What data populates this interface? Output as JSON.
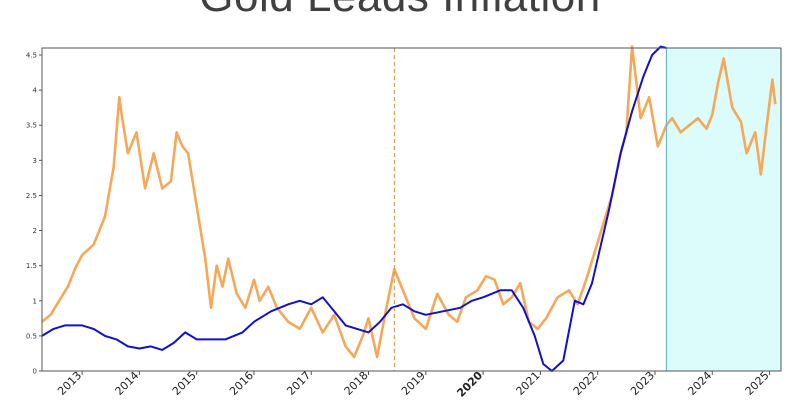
{
  "title": "Gold Leads Inflation",
  "colors": {
    "gold_series": "#f5a85a",
    "inflation_series": "#1111cc",
    "marker_line": "#e08a3a",
    "forecast_fill": "#dcfbfb",
    "forecast_border": "#6fb9c9",
    "highlight_tick": "#8b0000"
  },
  "chart_data": {
    "type": "line",
    "title": "Gold Leads Inflation",
    "xlabel": "",
    "ylabel": "",
    "xlim": [
      2012.3,
      2025.2
    ],
    "ylim": [
      0,
      4.6
    ],
    "grid": false,
    "legend": "none",
    "y_ticks": [
      "0",
      "0.5",
      "1",
      "1.5",
      "2",
      "2.5",
      "3",
      "3.5",
      "4",
      "4.5"
    ],
    "x_ticks": [
      {
        "label": "2013",
        "value": 2013,
        "highlight": false
      },
      {
        "label": "2014",
        "value": 2014,
        "highlight": false
      },
      {
        "label": "2015",
        "value": 2015,
        "highlight": false
      },
      {
        "label": "2016",
        "value": 2016,
        "highlight": false
      },
      {
        "label": "2017",
        "value": 2017,
        "highlight": false
      },
      {
        "label": "2018",
        "value": 2018,
        "highlight": false
      },
      {
        "label": "2019",
        "value": 2019,
        "highlight": false
      },
      {
        "label": "2020",
        "value": 2020,
        "highlight": true
      },
      {
        "label": "2021",
        "value": 2021,
        "highlight": false
      },
      {
        "label": "2022",
        "value": 2022,
        "highlight": false
      },
      {
        "label": "2023",
        "value": 2023,
        "highlight": false
      },
      {
        "label": "2024",
        "value": 2024,
        "highlight": false
      },
      {
        "label": "2025",
        "value": 2025,
        "highlight": false
      }
    ],
    "vertical_marker": 2018.45,
    "shaded_region": [
      2023.2,
      2025.2
    ],
    "series": [
      {
        "color": "gold",
        "x": [
          2012.3,
          2012.45,
          2012.6,
          2012.75,
          2012.9,
          2013.0,
          2013.2,
          2013.4,
          2013.55,
          2013.65,
          2013.7,
          2013.8,
          2013.95,
          2014.1,
          2014.25,
          2014.4,
          2014.55,
          2014.65,
          2014.75,
          2014.85,
          2014.95,
          2015.05,
          2015.15,
          2015.25,
          2015.35,
          2015.45,
          2015.55,
          2015.7,
          2015.85,
          2016.0,
          2016.1,
          2016.25,
          2016.4,
          2016.6,
          2016.8,
          2017.0,
          2017.2,
          2017.4,
          2017.6,
          2017.75,
          2017.9,
          2018.0,
          2018.15,
          2018.3,
          2018.45,
          2018.6,
          2018.8,
          2019.0,
          2019.2,
          2019.4,
          2019.55,
          2019.7,
          2019.9,
          2020.05,
          2020.2,
          2020.35,
          2020.5,
          2020.65,
          2020.8,
          2020.95,
          2021.1,
          2021.3,
          2021.5,
          2021.65,
          2021.8,
          2021.95,
          2022.1,
          2022.25,
          2022.4,
          2022.5,
          2022.6,
          2022.75,
          2022.9,
          2023.05,
          2023.2,
          2023.3,
          2023.45,
          2023.6,
          2023.75,
          2023.9,
          2024.0,
          2024.1,
          2024.2,
          2024.35,
          2024.5,
          2024.6,
          2024.75,
          2024.85,
          2024.95,
          2025.05,
          2025.1
        ],
        "y": [
          0.7,
          0.8,
          1.0,
          1.2,
          1.5,
          1.65,
          1.8,
          2.2,
          2.9,
          3.9,
          3.6,
          3.1,
          3.4,
          2.6,
          3.1,
          2.6,
          2.7,
          3.4,
          3.2,
          3.1,
          2.6,
          2.1,
          1.6,
          0.9,
          1.5,
          1.2,
          1.6,
          1.1,
          0.9,
          1.3,
          1.0,
          1.2,
          0.9,
          0.7,
          0.6,
          0.9,
          0.55,
          0.8,
          0.35,
          0.2,
          0.5,
          0.75,
          0.2,
          0.85,
          1.45,
          1.15,
          0.75,
          0.6,
          1.1,
          0.8,
          0.7,
          1.05,
          1.15,
          1.35,
          1.3,
          0.95,
          1.05,
          1.25,
          0.7,
          0.6,
          0.75,
          1.05,
          1.15,
          0.95,
          1.3,
          1.7,
          2.1,
          2.5,
          3.1,
          3.4,
          4.7,
          3.6,
          3.9,
          3.2,
          3.5,
          3.6,
          3.4,
          3.5,
          3.6,
          3.45,
          3.65,
          4.1,
          4.45,
          3.75,
          3.55,
          3.1,
          3.4,
          2.8,
          3.5,
          4.15,
          3.8
        ]
      },
      {
        "color": "blue",
        "x": [
          2012.3,
          2012.5,
          2012.7,
          2013.0,
          2013.2,
          2013.4,
          2013.6,
          2013.8,
          2014.0,
          2014.2,
          2014.4,
          2014.6,
          2014.8,
          2015.0,
          2015.2,
          2015.5,
          2015.8,
          2016.0,
          2016.3,
          2016.6,
          2016.8,
          2017.0,
          2017.2,
          2017.4,
          2017.6,
          2017.8,
          2018.0,
          2018.2,
          2018.4,
          2018.6,
          2018.8,
          2019.0,
          2019.3,
          2019.6,
          2019.8,
          2020.0,
          2020.15,
          2020.3,
          2020.5,
          2020.7,
          2020.9,
          2021.05,
          2021.2,
          2021.4,
          2021.6,
          2021.75,
          2021.9,
          2022.0,
          2022.2,
          2022.4,
          2022.6,
          2022.8,
          2022.95,
          2023.1,
          2023.2
        ],
        "y": [
          0.5,
          0.6,
          0.65,
          0.65,
          0.6,
          0.5,
          0.45,
          0.35,
          0.32,
          0.35,
          0.3,
          0.4,
          0.55,
          0.45,
          0.45,
          0.45,
          0.55,
          0.7,
          0.85,
          0.95,
          1.0,
          0.95,
          1.05,
          0.85,
          0.65,
          0.6,
          0.55,
          0.7,
          0.9,
          0.95,
          0.85,
          0.8,
          0.85,
          0.9,
          1.0,
          1.05,
          1.1,
          1.15,
          1.15,
          0.9,
          0.5,
          0.1,
          0.0,
          0.15,
          1.0,
          0.95,
          1.25,
          1.6,
          2.3,
          3.1,
          3.7,
          4.2,
          4.5,
          4.7,
          4.6
        ]
      }
    ]
  }
}
